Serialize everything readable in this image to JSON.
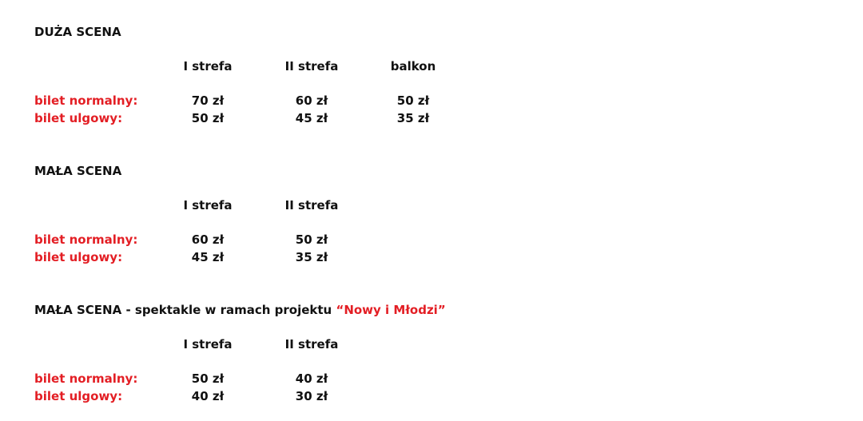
{
  "sections": [
    {
      "title": "DUŻA SCENA",
      "columns": [
        "I strefa",
        "II strefa",
        "balkon"
      ],
      "rows": [
        {
          "label": "bilet normalny:",
          "values": [
            "70 zł",
            "60 zł",
            "50 zł"
          ]
        },
        {
          "label": "bilet ulgowy:",
          "values": [
            "50 zł",
            "45 zł",
            "35 zł"
          ]
        }
      ]
    },
    {
      "title": "MAŁA SCENA",
      "columns": [
        "I strefa",
        "II strefa"
      ],
      "rows": [
        {
          "label": "bilet normalny:",
          "values": [
            "60 zł",
            "50 zł"
          ]
        },
        {
          "label": "bilet ulgowy:",
          "values": [
            "45 zł",
            "35 zł"
          ]
        }
      ]
    },
    {
      "title": "MAŁA SCENA - spektakle w ramach projektu ",
      "title_highlight": "“Nowy i Młodzi”",
      "columns": [
        "I strefa",
        "II strefa"
      ],
      "rows": [
        {
          "label": "bilet normalny:",
          "values": [
            "50 zł",
            "40 zł"
          ]
        },
        {
          "label": "bilet ulgowy:",
          "values": [
            "40 zł",
            "30 zł"
          ]
        }
      ]
    }
  ],
  "colors": {
    "accent": "#e31e24",
    "text": "#111111"
  }
}
